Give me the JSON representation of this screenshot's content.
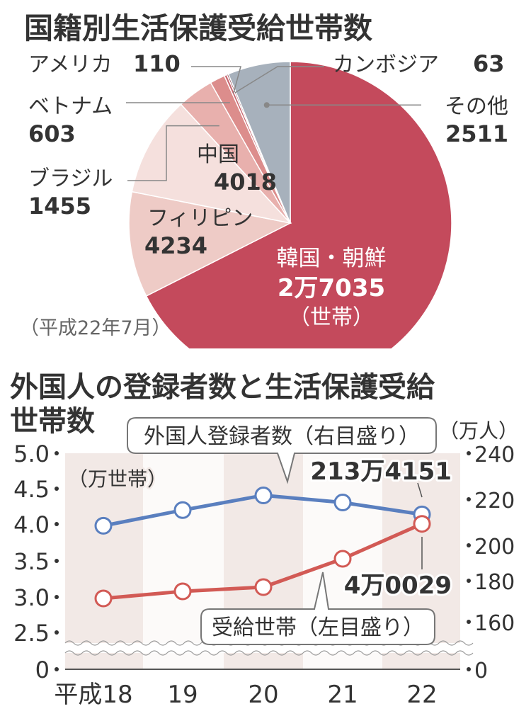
{
  "chart_data": [
    {
      "type": "pie",
      "title": "国籍別生活保護受給世帯数",
      "note": "（平成22年7月）",
      "unit": "（世帯）",
      "slices": [
        {
          "label": "韓国・朝鮮",
          "value": 27035,
          "value_text": "2万7035",
          "color": "#c44a5c"
        },
        {
          "label": "フィリピン",
          "value": 4234,
          "value_text": "4234",
          "color": "#eecbc6"
        },
        {
          "label": "中国",
          "value": 4018,
          "value_text": "4018",
          "color": "#f5e0dd"
        },
        {
          "label": "ブラジル",
          "value": 1455,
          "value_text": "1455",
          "color": "#e8b0ad"
        },
        {
          "label": "ベトナム",
          "value": 603,
          "value_text": "603",
          "color": "#dc8d8c"
        },
        {
          "label": "アメリカ",
          "value": 110,
          "value_text": "110",
          "color": "#c96a73"
        },
        {
          "label": "カンボジア",
          "value": 63,
          "value_text": "63",
          "color": "#7a2a36"
        },
        {
          "label": "その他",
          "value": 2511,
          "value_text": "2511",
          "color": "#a7b1bc"
        }
      ]
    },
    {
      "type": "line",
      "title_line1": "外国人の登録者数と生活保護受給",
      "title_line2": "世帯数",
      "x_labels": [
        "平成18",
        "19",
        "20",
        "21",
        "22"
      ],
      "left_axis": {
        "unit": "（万世帯）",
        "ticks": [
          "5.0",
          "4.5",
          "4.0",
          "3.5",
          "3.0",
          "2.5",
          "0"
        ]
      },
      "right_axis": {
        "unit": "（万人）",
        "ticks": [
          "240",
          "220",
          "200",
          "180",
          "160",
          "0"
        ]
      },
      "series": [
        {
          "name": "外国人登録者数（右目盛り）",
          "axis": "right",
          "color": "#5a7fbf",
          "values": [
            208.5,
            215.3,
            221.7,
            218.6,
            213.4151
          ],
          "end_label": "213万4151"
        },
        {
          "name": "受給世帯（左目盛り）",
          "axis": "left",
          "color": "#d25a55",
          "values": [
            2.95,
            3.05,
            3.11,
            3.51,
            4.0029
          ],
          "end_label": "4万0029"
        }
      ]
    }
  ]
}
